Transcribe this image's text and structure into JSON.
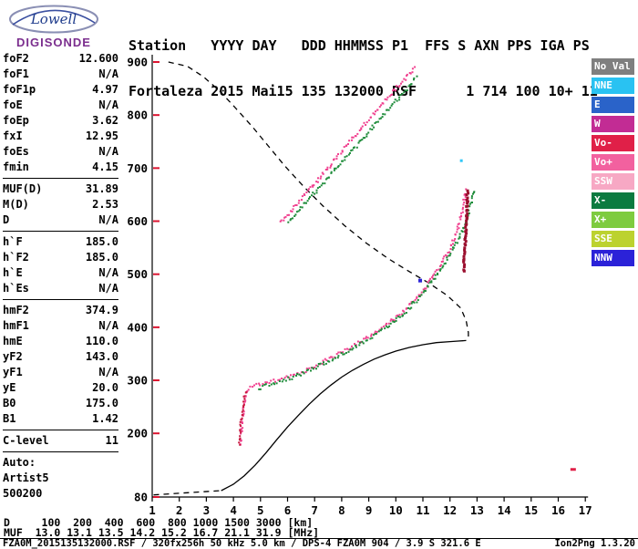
{
  "logo": {
    "name": "Lowell",
    "product": "DIGISONDE"
  },
  "header": {
    "row1": "Station   YYYY DAY   DDD HHMMSS P1  FFS S AXN PPS IGA PS",
    "row2": "Fortaleza 2015 Mai15 135 132000 RSF      1 714 100 10+ 11"
  },
  "params": {
    "groups": [
      [
        {
          "label": "foF2",
          "value": "12.600"
        },
        {
          "label": "foF1",
          "value": "N/A"
        },
        {
          "label": "foF1p",
          "value": "4.97"
        },
        {
          "label": "foE",
          "value": "N/A"
        },
        {
          "label": "foEp",
          "value": "3.62"
        },
        {
          "label": "fxI",
          "value": "12.95"
        },
        {
          "label": "foEs",
          "value": "N/A"
        },
        {
          "label": "fmin",
          "value": "4.15"
        }
      ],
      [
        {
          "label": "MUF(D)",
          "value": "31.89"
        },
        {
          "label": "M(D)",
          "value": "2.53"
        },
        {
          "label": "D",
          "value": "N/A"
        }
      ],
      [
        {
          "label": "h`F",
          "value": "185.0"
        },
        {
          "label": "h`F2",
          "value": "185.0"
        },
        {
          "label": "h`E",
          "value": "N/A"
        },
        {
          "label": "h`Es",
          "value": "N/A"
        }
      ],
      [
        {
          "label": "hmF2",
          "value": "374.9"
        },
        {
          "label": "hmF1",
          "value": "N/A"
        },
        {
          "label": "hmE",
          "value": "110.0"
        },
        {
          "label": "yF2",
          "value": "143.0"
        },
        {
          "label": "yF1",
          "value": "N/A"
        },
        {
          "label": "yE",
          "value": "20.0"
        },
        {
          "label": "B0",
          "value": "175.0"
        },
        {
          "label": "B1",
          "value": "1.42"
        }
      ],
      [
        {
          "label": "C-level",
          "value": "11"
        }
      ]
    ],
    "footer_lines": [
      "Auto:",
      "Artist5",
      "500200"
    ]
  },
  "legend": {
    "items": [
      {
        "label": "No Val",
        "color": "#7F7F7F"
      },
      {
        "label": "NNE",
        "color": "#29C2F2"
      },
      {
        "label": "E",
        "color": "#2A63C9"
      },
      {
        "label": "W",
        "color": "#C22C94"
      },
      {
        "label": "Vo-",
        "color": "#E02048"
      },
      {
        "label": "Vo+",
        "color": "#F2619F"
      },
      {
        "label": "SSW",
        "color": "#F7A8C4"
      },
      {
        "label": "X-",
        "color": "#0B7B40"
      },
      {
        "label": "X+",
        "color": "#7ECB3F"
      },
      {
        "label": "SSE",
        "color": "#BCD22F"
      },
      {
        "label": "NNW",
        "color": "#2B22D8"
      }
    ]
  },
  "bottom_table": {
    "rows": [
      {
        "label": "D",
        "values": [
          "100",
          "200",
          "400",
          "600",
          "800",
          "1000",
          "1500",
          "3000"
        ],
        "unit": "[km]"
      },
      {
        "label": "MUF",
        "values": [
          "13.0",
          "13.1",
          "13.5",
          "14.2",
          "15.2",
          "16.7",
          "21.1",
          "31.9"
        ],
        "unit": "[MHz]"
      }
    ]
  },
  "footer": {
    "left": "FZA0M_2015135132000.RSF / 320fx256h 50 kHz 5.0 km / DPS-4 FZA0M 904 / 3.9 S 321.6 E",
    "right": "Ion2Png 1.3.20"
  },
  "chart_data": {
    "type": "scatter",
    "x_unit": "MHz",
    "y_unit": "km",
    "xlim": [
      1,
      17
    ],
    "ylim": [
      80,
      900
    ],
    "x_ticks": [
      1,
      2,
      3,
      4,
      5,
      6,
      7,
      8,
      9,
      10,
      11,
      12,
      13,
      14,
      15,
      16,
      17
    ],
    "y_ticks": [
      80,
      200,
      300,
      400,
      500,
      600,
      700,
      800,
      900
    ],
    "grid": false,
    "tick_color": "#DC1430",
    "traces": [
      {
        "name": "F2-O-echo",
        "color": "#F0408F",
        "dot": 2,
        "jitter": 2,
        "points": [
          [
            4.25,
            178
          ],
          [
            4.3,
            205
          ],
          [
            4.35,
            235
          ],
          [
            4.42,
            262
          ],
          [
            4.5,
            280
          ],
          [
            4.7,
            288
          ],
          [
            5.0,
            293
          ],
          [
            5.4,
            297
          ],
          [
            5.8,
            302
          ],
          [
            6.2,
            309
          ],
          [
            6.6,
            317
          ],
          [
            7.0,
            327
          ],
          [
            7.4,
            337
          ],
          [
            7.8,
            348
          ],
          [
            8.2,
            359
          ],
          [
            8.6,
            370
          ],
          [
            9.0,
            382
          ],
          [
            9.4,
            394
          ],
          [
            9.8,
            409
          ],
          [
            10.2,
            426
          ],
          [
            10.6,
            446
          ],
          [
            11.0,
            470
          ],
          [
            11.4,
            497
          ],
          [
            11.7,
            521
          ],
          [
            12.0,
            548
          ],
          [
            12.2,
            572
          ],
          [
            12.35,
            597
          ],
          [
            12.45,
            620
          ],
          [
            12.53,
            643
          ],
          [
            12.6,
            662
          ]
        ]
      },
      {
        "name": "F2-X-echo",
        "color": "#1E8C3A",
        "dot": 2,
        "jitter": 2,
        "points": [
          [
            4.95,
            285
          ],
          [
            5.3,
            292
          ],
          [
            5.7,
            298
          ],
          [
            6.1,
            304
          ],
          [
            6.5,
            312
          ],
          [
            6.9,
            321
          ],
          [
            7.3,
            331
          ],
          [
            7.7,
            341
          ],
          [
            8.1,
            352
          ],
          [
            8.5,
            363
          ],
          [
            8.9,
            375
          ],
          [
            9.3,
            387
          ],
          [
            9.7,
            401
          ],
          [
            10.1,
            417
          ],
          [
            10.5,
            436
          ],
          [
            10.9,
            459
          ],
          [
            11.3,
            485
          ],
          [
            11.7,
            512
          ],
          [
            12.0,
            537
          ],
          [
            12.3,
            565
          ],
          [
            12.55,
            592
          ],
          [
            12.7,
            618
          ],
          [
            12.82,
            642
          ],
          [
            12.92,
            660
          ]
        ]
      },
      {
        "name": "second-hop-O-echo",
        "color": "#F0408F",
        "dot": 2,
        "jitter": 2,
        "points": [
          [
            5.75,
            598
          ],
          [
            6.15,
            620
          ],
          [
            6.55,
            645
          ],
          [
            6.95,
            668
          ],
          [
            7.35,
            692
          ],
          [
            7.75,
            716
          ],
          [
            8.15,
            740
          ],
          [
            8.55,
            763
          ],
          [
            8.95,
            788
          ],
          [
            9.35,
            812
          ],
          [
            9.75,
            836
          ],
          [
            10.15,
            858
          ],
          [
            10.5,
            878
          ],
          [
            10.75,
            892
          ]
        ]
      },
      {
        "name": "second-hop-X-echo",
        "color": "#1E8C3A",
        "dot": 2,
        "jitter": 2,
        "points": [
          [
            6.05,
            600
          ],
          [
            6.45,
            622
          ],
          [
            6.85,
            645
          ],
          [
            7.25,
            668
          ],
          [
            7.65,
            691
          ],
          [
            8.05,
            713
          ],
          [
            8.45,
            736
          ],
          [
            8.85,
            760
          ],
          [
            9.25,
            783
          ],
          [
            9.65,
            806
          ],
          [
            10.05,
            829
          ],
          [
            10.45,
            852
          ],
          [
            10.8,
            874
          ]
        ]
      },
      {
        "name": "foF2-asymptote-dark",
        "color": "#9B0F2E",
        "dot": 3,
        "jitter": 1,
        "points": [
          [
            12.5,
            505
          ],
          [
            12.56,
            550
          ],
          [
            12.6,
            592
          ],
          [
            12.63,
            630
          ],
          [
            12.65,
            660
          ]
        ]
      },
      {
        "name": "leading-edge-cluster",
        "color": "#C81840",
        "dot": 2,
        "jitter": 1.5,
        "points": [
          [
            4.22,
            180
          ],
          [
            4.27,
            212
          ],
          [
            4.33,
            244
          ],
          [
            4.4,
            268
          ],
          [
            4.48,
            283
          ]
        ]
      }
    ],
    "profiles": [
      {
        "name": "true-height-profile",
        "style": "solid",
        "color": "#000000",
        "points": [
          [
            3.55,
            92
          ],
          [
            4.0,
            104
          ],
          [
            4.4,
            120
          ],
          [
            4.8,
            140
          ],
          [
            5.2,
            163
          ],
          [
            5.6,
            188
          ],
          [
            6.0,
            212
          ],
          [
            6.4,
            234
          ],
          [
            6.8,
            255
          ],
          [
            7.2,
            274
          ],
          [
            7.6,
            291
          ],
          [
            8.0,
            306
          ],
          [
            8.4,
            319
          ],
          [
            8.8,
            330
          ],
          [
            9.2,
            340
          ],
          [
            9.6,
            348
          ],
          [
            10.0,
            355
          ],
          [
            10.5,
            362
          ],
          [
            11.0,
            367
          ],
          [
            11.5,
            371
          ],
          [
            12.0,
            373
          ],
          [
            12.3,
            374
          ],
          [
            12.6,
            375
          ]
        ]
      },
      {
        "name": "topside-extrapolation",
        "style": "dashed",
        "color": "#000000",
        "points": [
          [
            1.6,
            900
          ],
          [
            2.3,
            892
          ],
          [
            2.9,
            872
          ],
          [
            3.5,
            845
          ],
          [
            4.1,
            812
          ],
          [
            4.7,
            778
          ],
          [
            5.3,
            741
          ],
          [
            5.9,
            704
          ],
          [
            6.6,
            665
          ],
          [
            7.3,
            629
          ],
          [
            8.1,
            592
          ],
          [
            8.9,
            559
          ],
          [
            9.7,
            530
          ],
          [
            10.5,
            505
          ],
          [
            11.2,
            484
          ],
          [
            11.9,
            460
          ],
          [
            12.4,
            436
          ],
          [
            12.6,
            412
          ],
          [
            12.68,
            390
          ],
          [
            12.68,
            375
          ]
        ]
      },
      {
        "name": "sub-fmin-extension",
        "style": "dashed",
        "color": "#000000",
        "points": [
          [
            1.05,
            84
          ],
          [
            2.3,
            88
          ],
          [
            3.55,
            92
          ]
        ]
      }
    ],
    "stray_points": [
      {
        "f": 12.42,
        "km": 714,
        "color": "#2FC7F7",
        "size": [
          3,
          3
        ]
      },
      {
        "f": 16.55,
        "km": 132,
        "color": "#E02048",
        "size": [
          6,
          3
        ]
      },
      {
        "f": 10.9,
        "km": 488,
        "color": "#2B22D8",
        "size": [
          4,
          4
        ]
      }
    ]
  }
}
